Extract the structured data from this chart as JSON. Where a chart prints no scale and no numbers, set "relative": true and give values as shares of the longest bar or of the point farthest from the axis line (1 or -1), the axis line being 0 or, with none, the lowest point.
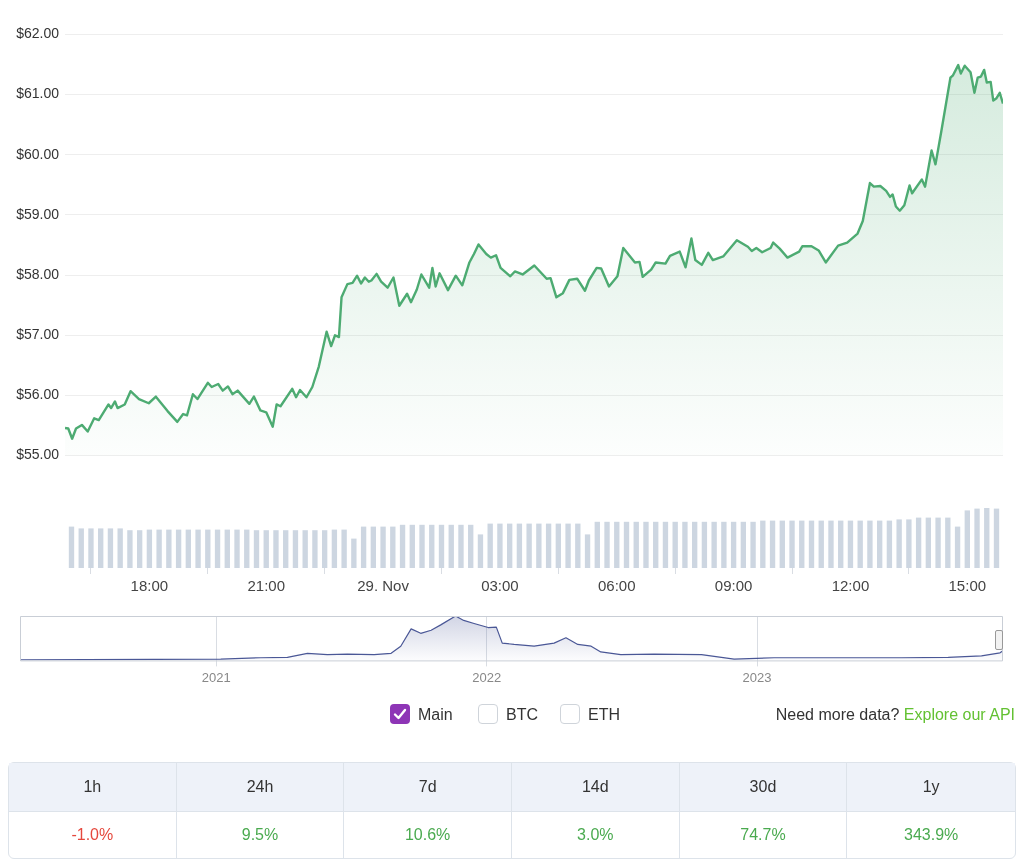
{
  "chart_data": [
    {
      "type": "area",
      "color": "#4dab72",
      "xlim": [
        "2023-11-28T15:50",
        "2023-11-29T15:55"
      ],
      "ylim": [
        55,
        62
      ],
      "yticks": [
        {
          "value": 55,
          "label": "$55.00"
        },
        {
          "value": 56,
          "label": "$56.00"
        },
        {
          "value": 57,
          "label": "$57.00"
        },
        {
          "value": 58,
          "label": "$58.00"
        },
        {
          "value": 59,
          "label": "$59.00"
        },
        {
          "value": 60,
          "label": "$60.00"
        },
        {
          "value": 61,
          "label": "$61.00"
        },
        {
          "value": 62,
          "label": "$62.00"
        }
      ],
      "grid": "y",
      "tick_labels": "y",
      "x": [
        "2023-11-28T15:50",
        "2023-11-28T15:55",
        "2023-11-28T16:01",
        "2023-11-28T16:07",
        "2023-11-28T16:16",
        "2023-11-28T16:25",
        "2023-11-28T16:35",
        "2023-11-28T16:42",
        "2023-11-28T16:57",
        "2023-11-28T17:01",
        "2023-11-28T17:07",
        "2023-11-28T17:11",
        "2023-11-28T17:22",
        "2023-11-28T17:31",
        "2023-11-28T17:44",
        "2023-11-28T17:59",
        "2023-11-28T18:10",
        "2023-11-28T18:28",
        "2023-11-28T18:43",
        "2023-11-28T18:52",
        "2023-11-28T18:58",
        "2023-11-28T19:07",
        "2023-11-28T19:14",
        "2023-11-28T19:30",
        "2023-11-28T19:36",
        "2023-11-28T19:46",
        "2023-11-28T19:53",
        "2023-11-28T20:01",
        "2023-11-28T20:08",
        "2023-11-28T20:16",
        "2023-11-28T20:34",
        "2023-11-28T20:41",
        "2023-11-28T20:51",
        "2023-11-28T21:00",
        "2023-11-28T21:10",
        "2023-11-28T21:16",
        "2023-11-28T21:22",
        "2023-11-28T21:40",
        "2023-11-28T21:46",
        "2023-11-28T21:52",
        "2023-11-28T22:02",
        "2023-11-28T22:11",
        "2023-11-28T22:21",
        "2023-11-28T22:33",
        "2023-11-28T22:40",
        "2023-11-28T22:46",
        "2023-11-28T22:52",
        "2023-11-28T22:56",
        "2023-11-28T23:05",
        "2023-11-28T23:13",
        "2023-11-28T23:20",
        "2023-11-28T23:26",
        "2023-11-28T23:32",
        "2023-11-28T23:38",
        "2023-11-28T23:42",
        "2023-11-28T23:50",
        "2023-11-28T23:57",
        "2023-11-29T00:07",
        "2023-11-29T00:16",
        "2023-11-29T00:25",
        "2023-11-29T00:37",
        "2023-11-29T00:43",
        "2023-11-29T00:52",
        "2023-11-29T00:59",
        "2023-11-29T01:11",
        "2023-11-29T01:16",
        "2023-11-29T01:21",
        "2023-11-29T01:27",
        "2023-11-29T01:40",
        "2023-11-29T01:52",
        "2023-11-29T02:02",
        "2023-11-29T02:13",
        "2023-11-29T02:20",
        "2023-11-29T02:27",
        "2023-11-29T02:39",
        "2023-11-29T02:46",
        "2023-11-29T02:54",
        "2023-11-29T03:01",
        "2023-11-29T03:16",
        "2023-11-29T03:23",
        "2023-11-29T03:35",
        "2023-11-29T03:53",
        "2023-11-29T04:12",
        "2023-11-29T04:18",
        "2023-11-29T04:27",
        "2023-11-29T04:37",
        "2023-11-29T04:47",
        "2023-11-29T04:59",
        "2023-11-29T05:11",
        "2023-11-29T05:17",
        "2023-11-29T05:29",
        "2023-11-29T05:36",
        "2023-11-29T05:48",
        "2023-11-29T06:01",
        "2023-11-29T06:10",
        "2023-11-29T06:28",
        "2023-11-29T06:35",
        "2023-11-29T06:40",
        "2023-11-29T06:53",
        "2023-11-29T07:00",
        "2023-11-29T07:15",
        "2023-11-29T07:22",
        "2023-11-29T07:37",
        "2023-11-29T07:46",
        "2023-11-29T07:55",
        "2023-11-29T08:01",
        "2023-11-29T08:11",
        "2023-11-29T08:21",
        "2023-11-29T08:28",
        "2023-11-29T08:44",
        "2023-11-29T09:05",
        "2023-11-29T09:22",
        "2023-11-29T09:28",
        "2023-11-29T09:35",
        "2023-11-29T09:44",
        "2023-11-29T09:57",
        "2023-11-29T10:01",
        "2023-11-29T10:11",
        "2023-11-29T10:23",
        "2023-11-29T10:41",
        "2023-11-29T10:46",
        "2023-11-29T11:00",
        "2023-11-29T11:11",
        "2023-11-29T11:22",
        "2023-11-29T11:41",
        "2023-11-29T11:55",
        "2023-11-29T12:11",
        "2023-11-29T12:19",
        "2023-11-29T12:30",
        "2023-11-29T12:36",
        "2023-11-29T12:46",
        "2023-11-29T12:55",
        "2023-11-29T13:01",
        "2023-11-29T13:05",
        "2023-11-29T13:10",
        "2023-11-29T13:16",
        "2023-11-29T13:23",
        "2023-11-29T13:31",
        "2023-11-29T13:35",
        "2023-11-29T13:50",
        "2023-11-29T13:55",
        "2023-11-29T14:05",
        "2023-11-29T14:11",
        "2023-11-29T14:20",
        "2023-11-29T14:34",
        "2023-11-29T14:38",
        "2023-11-29T14:46",
        "2023-11-29T14:50",
        "2023-11-29T14:56",
        "2023-11-29T15:05",
        "2023-11-29T15:11",
        "2023-11-29T15:16",
        "2023-11-29T15:21",
        "2023-11-29T15:26",
        "2023-11-29T15:30",
        "2023-11-29T15:36",
        "2023-11-29T15:40",
        "2023-11-29T15:45",
        "2023-11-29T15:50",
        "2023-11-29T15:55"
      ],
      "values": [
        55.46,
        55.45,
        55.28,
        55.45,
        55.51,
        55.4,
        55.62,
        55.59,
        55.85,
        55.79,
        55.9,
        55.79,
        55.85,
        56.07,
        55.94,
        55.87,
        55.98,
        55.74,
        55.56,
        55.69,
        55.67,
        56.02,
        55.94,
        56.21,
        56.14,
        56.19,
        56.08,
        56.15,
        56.02,
        56.08,
        55.86,
        55.98,
        55.75,
        55.72,
        55.48,
        55.85,
        55.82,
        56.11,
        55.97,
        56.09,
        55.97,
        56.14,
        56.48,
        57.06,
        56.82,
        57.0,
        56.97,
        57.63,
        57.85,
        57.87,
        57.99,
        57.86,
        57.96,
        57.89,
        57.91,
        58.02,
        57.89,
        57.79,
        57.96,
        57.49,
        57.69,
        57.55,
        57.76,
        58.01,
        57.79,
        58.12,
        57.81,
        58.03,
        57.75,
        57.99,
        57.83,
        58.21,
        58.35,
        58.51,
        58.35,
        58.29,
        58.33,
        58.12,
        57.98,
        58.06,
        58.01,
        58.16,
        57.94,
        57.95,
        57.63,
        57.7,
        57.92,
        57.94,
        57.74,
        57.91,
        58.12,
        58.11,
        57.81,
        57.98,
        58.45,
        58.21,
        58.22,
        57.97,
        58.09,
        58.21,
        58.19,
        58.32,
        58.39,
        58.13,
        58.61,
        58.25,
        58.17,
        58.37,
        58.25,
        58.31,
        58.58,
        58.47,
        58.4,
        58.45,
        58.38,
        58.45,
        58.54,
        58.44,
        58.29,
        58.39,
        58.48,
        58.48,
        58.41,
        58.21,
        58.49,
        58.54,
        58.69,
        58.9,
        59.53,
        59.47,
        59.48,
        59.4,
        59.3,
        59.34,
        59.14,
        59.07,
        59.16,
        59.49,
        59.36,
        59.59,
        59.47,
        60.07,
        59.84,
        60.39,
        61.28,
        61.32,
        61.49,
        61.35,
        61.48,
        61.37,
        61.03,
        61.28,
        61.3,
        61.41,
        61.2,
        61.21,
        60.9,
        60.94,
        61.03,
        60.85
      ]
    },
    {
      "type": "bar",
      "color": "#cdd6e1",
      "relative": true,
      "xlim": [
        "2023-11-28T15:50",
        "2023-11-29T15:55"
      ],
      "xticks": [
        {
          "value": "2023-11-28T18:00",
          "label": "18:00"
        },
        {
          "value": "2023-11-28T21:00",
          "label": "21:00"
        },
        {
          "value": "2023-11-29T00:00",
          "label": "29. Nov"
        },
        {
          "value": "2023-11-29T03:00",
          "label": "03:00"
        },
        {
          "value": "2023-11-29T06:00",
          "label": "06:00"
        },
        {
          "value": "2023-11-29T09:00",
          "label": "09:00"
        },
        {
          "value": "2023-11-29T12:00",
          "label": "12:00"
        },
        {
          "value": "2023-11-29T15:00",
          "label": "15:00"
        }
      ],
      "x": [
        "2023-11-28T16:00",
        "2023-11-28T16:15",
        "2023-11-28T16:30",
        "2023-11-28T16:45",
        "2023-11-28T17:00",
        "2023-11-28T17:15",
        "2023-11-28T17:30",
        "2023-11-28T17:45",
        "2023-11-28T18:00",
        "2023-11-28T18:15",
        "2023-11-28T18:30",
        "2023-11-28T18:45",
        "2023-11-28T19:00",
        "2023-11-28T19:15",
        "2023-11-28T19:30",
        "2023-11-28T19:45",
        "2023-11-28T20:00",
        "2023-11-28T20:15",
        "2023-11-28T20:30",
        "2023-11-28T20:45",
        "2023-11-28T21:00",
        "2023-11-28T21:15",
        "2023-11-28T21:30",
        "2023-11-28T21:45",
        "2023-11-28T22:00",
        "2023-11-28T22:15",
        "2023-11-28T22:30",
        "2023-11-28T22:45",
        "2023-11-28T23:00",
        "2023-11-28T23:15",
        "2023-11-28T23:30",
        "2023-11-28T23:45",
        "2023-11-29T00:00",
        "2023-11-29T00:15",
        "2023-11-29T00:30",
        "2023-11-29T00:45",
        "2023-11-29T01:00",
        "2023-11-29T01:15",
        "2023-11-29T01:30",
        "2023-11-29T01:45",
        "2023-11-29T02:00",
        "2023-11-29T02:15",
        "2023-11-29T02:30",
        "2023-11-29T02:45",
        "2023-11-29T03:00",
        "2023-11-29T03:15",
        "2023-11-29T03:30",
        "2023-11-29T03:45",
        "2023-11-29T04:00",
        "2023-11-29T04:15",
        "2023-11-29T04:30",
        "2023-11-29T04:45",
        "2023-11-29T05:00",
        "2023-11-29T05:15",
        "2023-11-29T05:30",
        "2023-11-29T05:45",
        "2023-11-29T06:00",
        "2023-11-29T06:15",
        "2023-11-29T06:30",
        "2023-11-29T06:45",
        "2023-11-29T07:00",
        "2023-11-29T07:15",
        "2023-11-29T07:30",
        "2023-11-29T07:45",
        "2023-11-29T08:00",
        "2023-11-29T08:15",
        "2023-11-29T08:30",
        "2023-11-29T08:45",
        "2023-11-29T09:00",
        "2023-11-29T09:15",
        "2023-11-29T09:30",
        "2023-11-29T09:45",
        "2023-11-29T10:00",
        "2023-11-29T10:15",
        "2023-11-29T10:30",
        "2023-11-29T10:45",
        "2023-11-29T11:00",
        "2023-11-29T11:15",
        "2023-11-29T11:30",
        "2023-11-29T11:45",
        "2023-11-29T12:00",
        "2023-11-29T12:15",
        "2023-11-29T12:30",
        "2023-11-29T12:45",
        "2023-11-29T13:00",
        "2023-11-29T13:15",
        "2023-11-29T13:30",
        "2023-11-29T13:45",
        "2023-11-29T14:00",
        "2023-11-29T14:15",
        "2023-11-29T14:30",
        "2023-11-29T14:45",
        "2023-11-29T15:00",
        "2023-11-29T15:15",
        "2023-11-29T15:30",
        "2023-11-29T15:45"
      ],
      "values": [
        0.69,
        0.66,
        0.66,
        0.66,
        0.66,
        0.66,
        0.63,
        0.63,
        0.64,
        0.64,
        0.64,
        0.64,
        0.64,
        0.64,
        0.64,
        0.64,
        0.64,
        0.64,
        0.64,
        0.63,
        0.63,
        0.63,
        0.63,
        0.63,
        0.63,
        0.63,
        0.63,
        0.64,
        0.64,
        0.49,
        0.69,
        0.69,
        0.69,
        0.69,
        0.72,
        0.72,
        0.72,
        0.72,
        0.72,
        0.72,
        0.72,
        0.72,
        0.56,
        0.74,
        0.74,
        0.74,
        0.74,
        0.74,
        0.74,
        0.74,
        0.74,
        0.74,
        0.74,
        0.56,
        0.77,
        0.77,
        0.77,
        0.77,
        0.77,
        0.77,
        0.77,
        0.77,
        0.77,
        0.77,
        0.77,
        0.77,
        0.77,
        0.77,
        0.77,
        0.77,
        0.77,
        0.79,
        0.79,
        0.79,
        0.79,
        0.79,
        0.79,
        0.79,
        0.79,
        0.79,
        0.79,
        0.79,
        0.79,
        0.79,
        0.79,
        0.81,
        0.81,
        0.84,
        0.84,
        0.84,
        0.84,
        0.69,
        0.96,
        0.99,
        1,
        0.99
      ]
    },
    {
      "type": "area",
      "color": "#4a5796",
      "relative": true,
      "grid": "x",
      "xlim": [
        "2020-04-11",
        "2023-11-29"
      ],
      "xticks": [
        {
          "value": "2021-01-01",
          "label": "2021"
        },
        {
          "value": "2022-01-01",
          "label": "2022"
        },
        {
          "value": "2023-01-01",
          "label": "2023"
        }
      ],
      "x": [
        "2020-04-11",
        "2021-01-07",
        "2021-03-02",
        "2021-04-07",
        "2021-05-04",
        "2021-05-31",
        "2021-06-27",
        "2021-08-02",
        "2021-08-25",
        "2021-09-07",
        "2021-09-21",
        "2021-10-04",
        "2021-10-18",
        "2021-10-31",
        "2021-11-20",
        "2021-12-01",
        "2021-12-15",
        "2022-01-03",
        "2022-01-14",
        "2022-01-22",
        "2022-02-07",
        "2022-03-06",
        "2022-04-02",
        "2022-04-18",
        "2022-05-04",
        "2022-05-22",
        "2022-06-04",
        "2022-07-01",
        "2022-08-15",
        "2022-10-18",
        "2022-12-01",
        "2023-01-24",
        "2023-04-15",
        "2023-07-15",
        "2023-09-16",
        "2023-10-31",
        "2023-11-25",
        "2023-11-29"
      ],
      "values": [
        0.01,
        0.03,
        0.06,
        0.07,
        0.16,
        0.13,
        0.14,
        0.13,
        0.16,
        0.32,
        0.71,
        0.61,
        0.68,
        0.8,
        1,
        0.9,
        0.83,
        0.74,
        0.75,
        0.39,
        0.36,
        0.32,
        0.39,
        0.51,
        0.36,
        0.32,
        0.19,
        0.13,
        0.14,
        0.13,
        0.03,
        0.06,
        0.06,
        0.06,
        0.07,
        0.1,
        0.17,
        0.22
      ]
    },
    {
      "type": "other",
      "categories": [
        "1h",
        "24h",
        "7d",
        "14d",
        "30d",
        "1y"
      ],
      "values": [
        -1.0,
        9.5,
        10.6,
        3.0,
        74.7,
        343.9
      ],
      "value_labels": [
        "-1.0%",
        "9.5%",
        "10.6%",
        "3.0%",
        "74.7%",
        "343.9%"
      ],
      "annotations": [
        "Main",
        "BTC",
        "ETH",
        "Need more data?",
        "Explore our API"
      ]
    }
  ]
}
